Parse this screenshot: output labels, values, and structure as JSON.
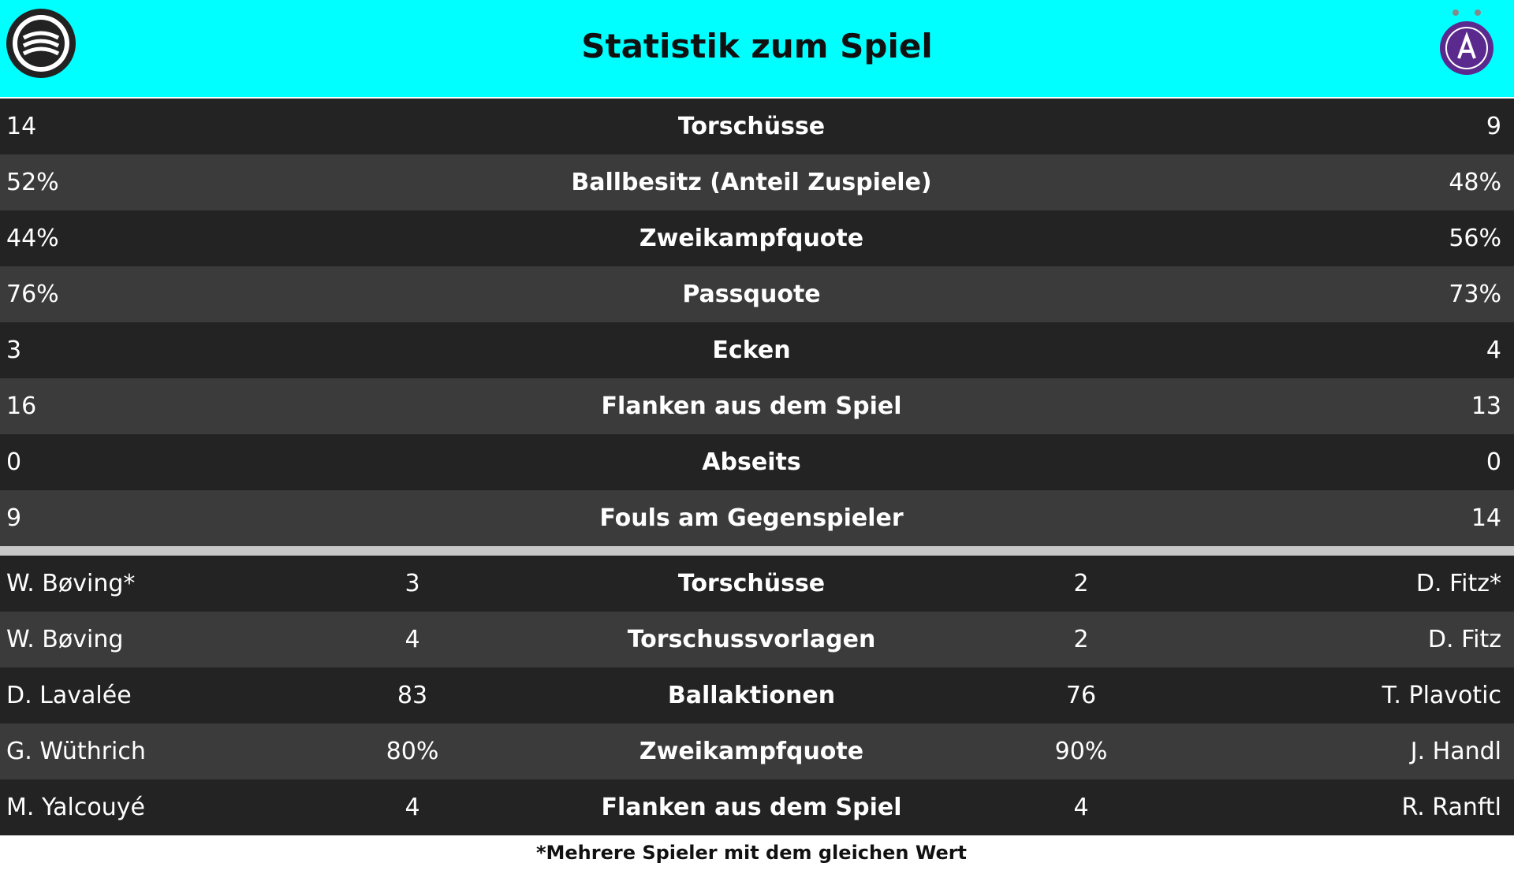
{
  "header": {
    "title": "Statistik zum Spiel"
  },
  "team_stats": {
    "rows": [
      {
        "home": "14",
        "label": "Torschüsse",
        "away": "9"
      },
      {
        "home": "52%",
        "label": "Ballbesitz (Anteil Zuspiele)",
        "away": "48%"
      },
      {
        "home": "44%",
        "label": "Zweikampfquote",
        "away": "56%"
      },
      {
        "home": "76%",
        "label": "Passquote",
        "away": "73%"
      },
      {
        "home": "3",
        "label": "Ecken",
        "away": "4"
      },
      {
        "home": "16",
        "label": "Flanken aus dem Spiel",
        "away": "13"
      },
      {
        "home": "0",
        "label": "Abseits",
        "away": "0"
      },
      {
        "home": "9",
        "label": "Fouls am Gegenspieler",
        "away": "14"
      }
    ]
  },
  "player_stats": {
    "rows": [
      {
        "home_player": "W. Bøving*",
        "home_value": "3",
        "label": "Torschüsse",
        "away_value": "2",
        "away_player": "D. Fitz*"
      },
      {
        "home_player": "W. Bøving",
        "home_value": "4",
        "label": "Torschussvorlagen",
        "away_value": "2",
        "away_player": "D. Fitz"
      },
      {
        "home_player": "D. Lavalée",
        "home_value": "83",
        "label": "Ballaktionen",
        "away_value": "76",
        "away_player": "T. Plavotic"
      },
      {
        "home_player": "G. Wüthrich",
        "home_value": "80%",
        "label": "Zweikampfquote",
        "away_value": "90%",
        "away_player": "J. Handl"
      },
      {
        "home_player": "M. Yalcouyé",
        "home_value": "4",
        "label": "Flanken aus dem Spiel",
        "away_value": "4",
        "away_player": "R. Ranftl"
      }
    ]
  },
  "footnote": "*Mehrere Spieler mit dem gleichen Wert"
}
